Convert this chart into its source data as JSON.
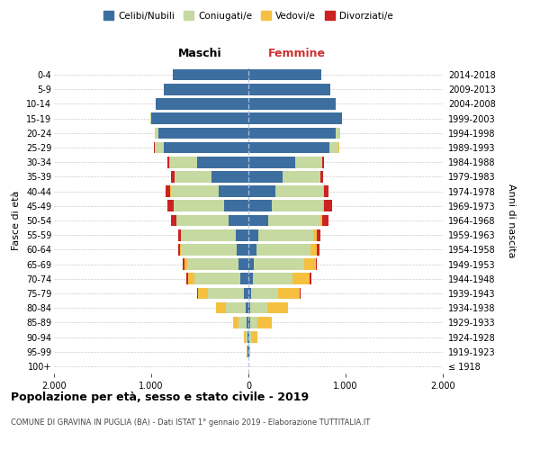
{
  "age_groups": [
    "100+",
    "95-99",
    "90-94",
    "85-89",
    "80-84",
    "75-79",
    "70-74",
    "65-69",
    "60-64",
    "55-59",
    "50-54",
    "45-49",
    "40-44",
    "35-39",
    "30-34",
    "25-29",
    "20-24",
    "15-19",
    "10-14",
    "5-9",
    "0-4"
  ],
  "birth_years": [
    "≤ 1918",
    "1919-1923",
    "1924-1928",
    "1929-1933",
    "1934-1938",
    "1939-1943",
    "1944-1948",
    "1949-1953",
    "1954-1958",
    "1959-1963",
    "1964-1968",
    "1969-1973",
    "1974-1978",
    "1979-1983",
    "1984-1988",
    "1989-1993",
    "1994-1998",
    "1999-2003",
    "2004-2008",
    "2009-2013",
    "2014-2018"
  ],
  "male": {
    "celibi": [
      2,
      5,
      10,
      20,
      30,
      50,
      80,
      100,
      120,
      130,
      200,
      250,
      310,
      380,
      530,
      870,
      930,
      1000,
      950,
      870,
      780
    ],
    "coniugati": [
      0,
      5,
      20,
      80,
      200,
      370,
      480,
      530,
      570,
      560,
      540,
      520,
      490,
      380,
      280,
      90,
      30,
      5,
      0,
      0,
      0
    ],
    "vedovi": [
      0,
      5,
      20,
      60,
      100,
      100,
      60,
      30,
      10,
      5,
      5,
      3,
      2,
      2,
      2,
      2,
      2,
      0,
      0,
      0,
      0
    ],
    "divorziati": [
      0,
      0,
      0,
      0,
      0,
      5,
      20,
      20,
      25,
      30,
      50,
      60,
      50,
      30,
      20,
      10,
      5,
      0,
      0,
      0,
      0
    ]
  },
  "female": {
    "nubili": [
      2,
      5,
      10,
      15,
      20,
      30,
      50,
      60,
      80,
      100,
      200,
      240,
      280,
      350,
      480,
      830,
      900,
      960,
      900,
      840,
      750
    ],
    "coniugate": [
      0,
      5,
      20,
      80,
      170,
      280,
      400,
      510,
      560,
      570,
      540,
      530,
      490,
      390,
      280,
      100,
      40,
      5,
      0,
      0,
      0
    ],
    "vedove": [
      2,
      10,
      60,
      150,
      220,
      220,
      180,
      120,
      60,
      30,
      20,
      10,
      5,
      3,
      2,
      2,
      2,
      0,
      0,
      0,
      0
    ],
    "divorziate": [
      0,
      0,
      0,
      0,
      0,
      5,
      15,
      15,
      30,
      40,
      60,
      80,
      50,
      30,
      20,
      5,
      2,
      0,
      0,
      0,
      0
    ]
  },
  "colors": {
    "celibi_nubili": "#3d6ea0",
    "coniugati": "#c5d9a0",
    "vedovi": "#f5c040",
    "divorziati": "#cc2222"
  },
  "xlim": 2000,
  "title": "Popolazione per età, sesso e stato civile - 2019",
  "subtitle": "COMUNE DI GRAVINA IN PUGLIA (BA) - Dati ISTAT 1° gennaio 2019 - Elaborazione TUTTITALIA.IT",
  "xlabel_left": "Maschi",
  "xlabel_right": "Femmine",
  "ylabel_left": "Fasce di età",
  "ylabel_right": "Anni di nascita",
  "legend_labels": [
    "Celibi/Nubili",
    "Coniugati/e",
    "Vedovi/e",
    "Divorziati/e"
  ],
  "xtick_labels": [
    "2.000",
    "1.000",
    "0",
    "1.000",
    "2.000"
  ]
}
